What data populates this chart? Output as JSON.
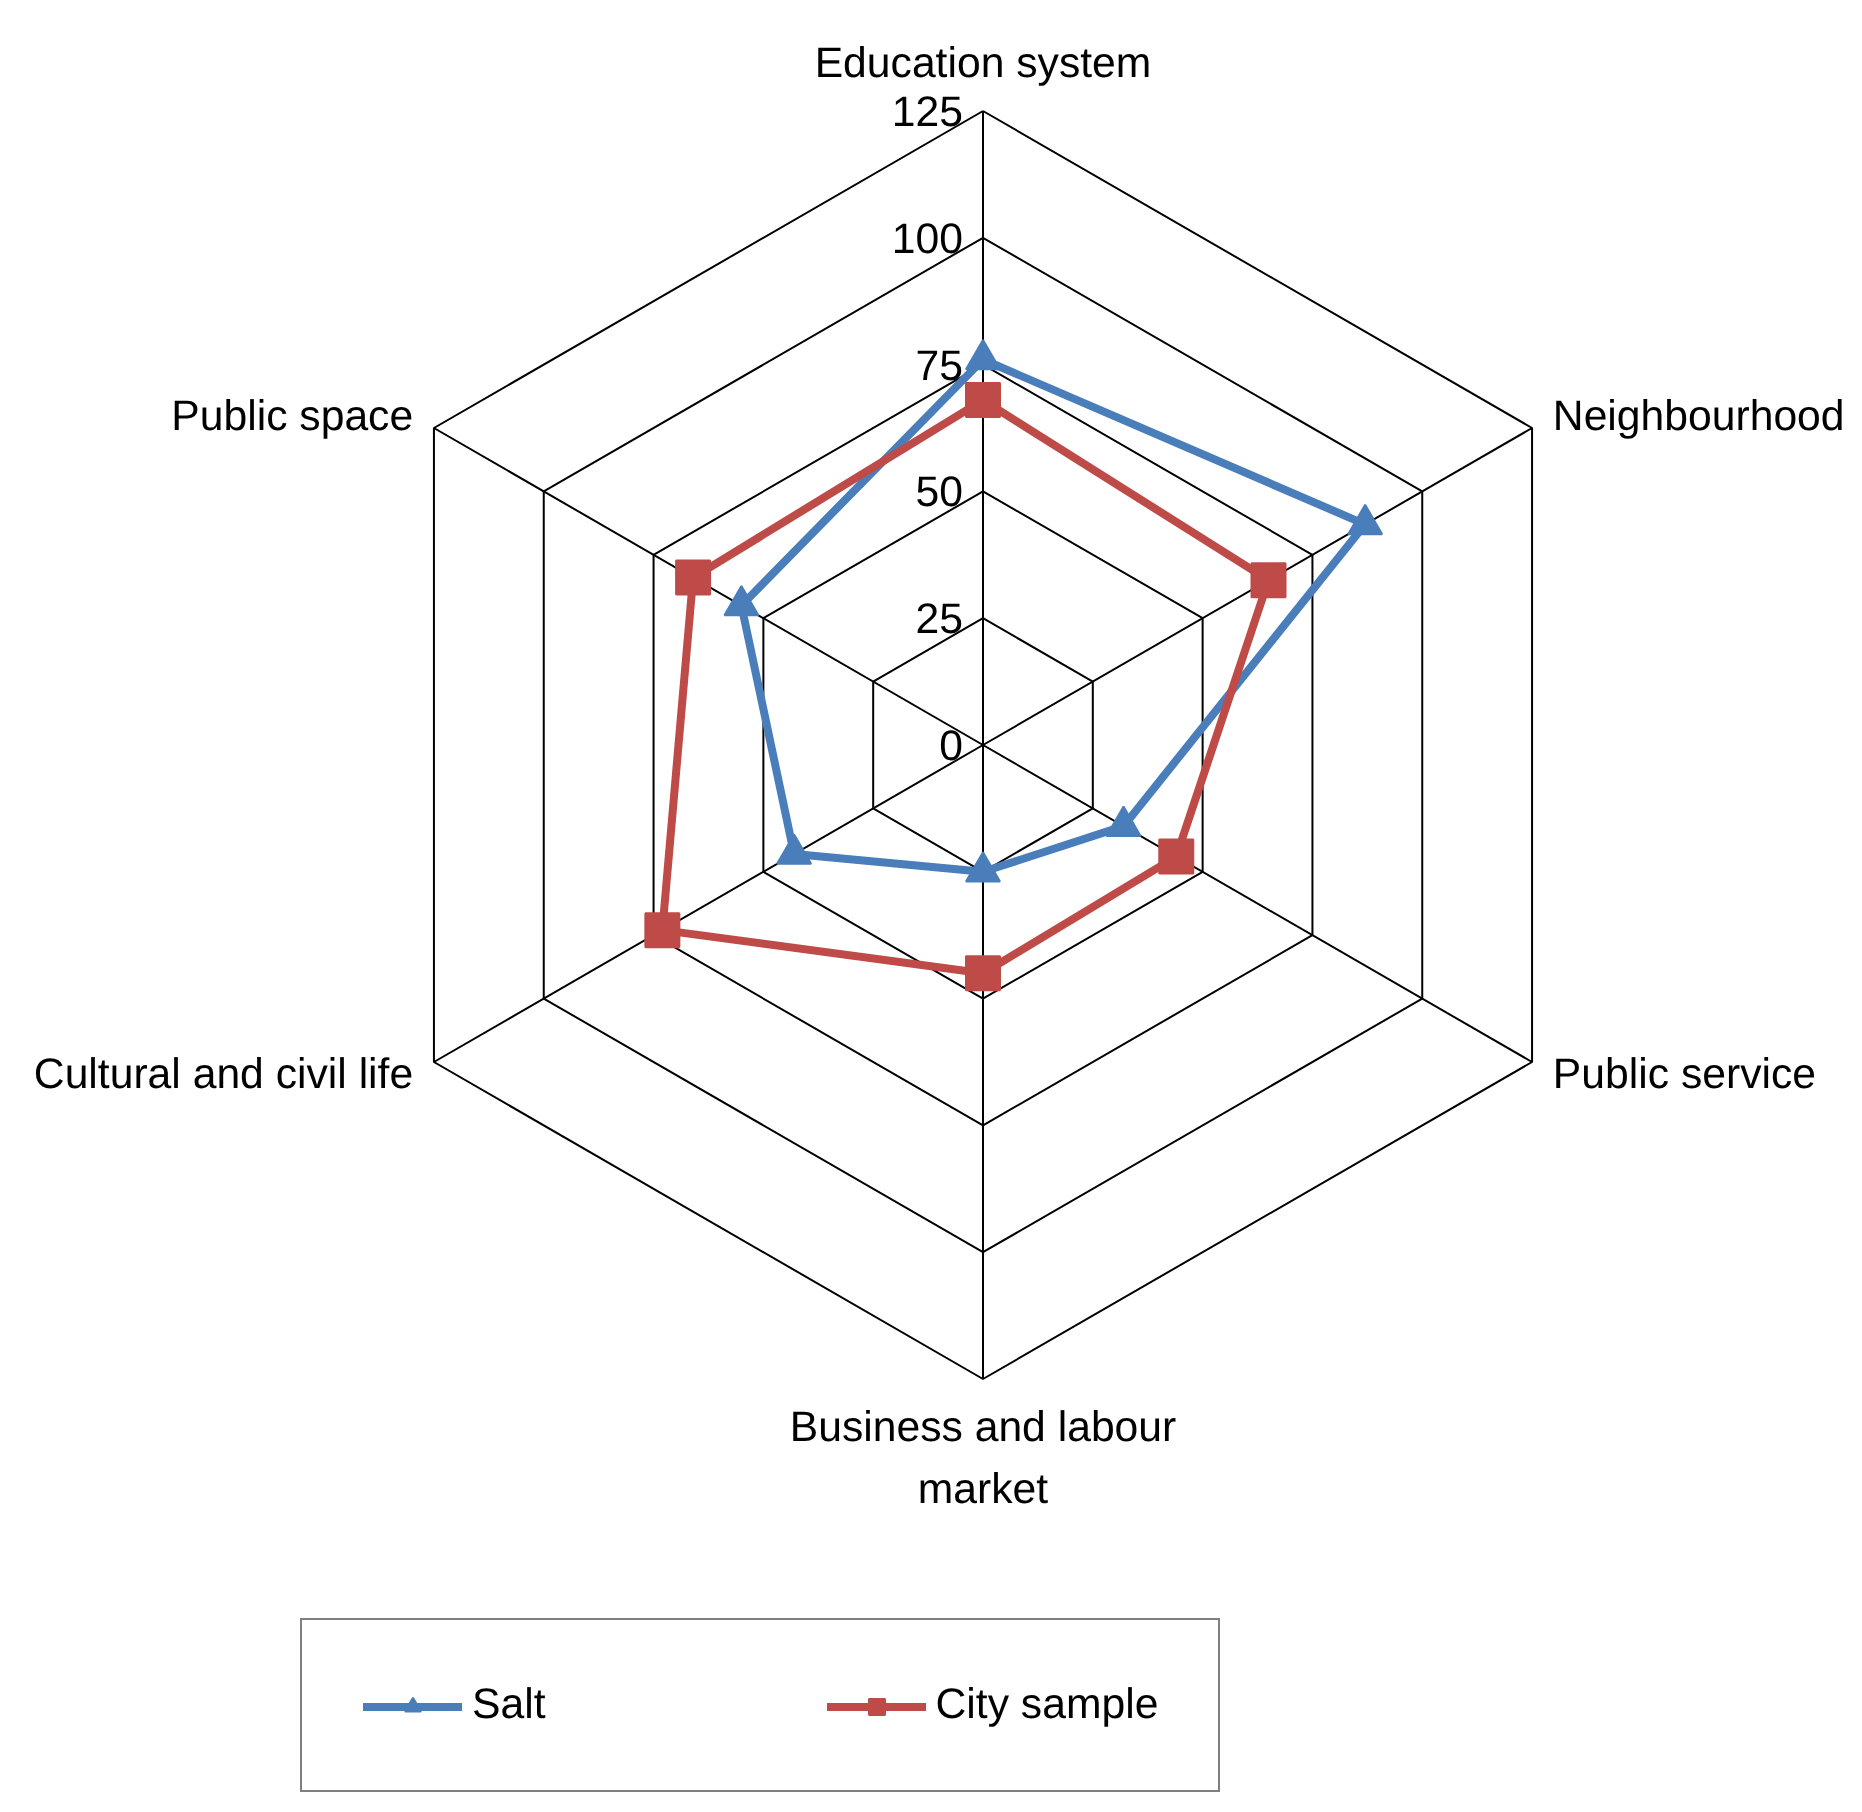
{
  "chart_data": {
    "type": "radar",
    "categories": [
      "Education system",
      "Neighbourhood",
      "Public service",
      "Business and labour market",
      "Cultural and civil life",
      "Public space"
    ],
    "series": [
      {
        "name": "Salt",
        "color": "#4a7ebb",
        "marker": "triangle",
        "values": [
          76,
          87,
          32,
          25,
          43,
          55
        ]
      },
      {
        "name": "City sample",
        "color": "#be4b48",
        "marker": "square",
        "values": [
          68,
          65,
          44,
          45,
          73,
          66
        ]
      }
    ],
    "ylim": [
      0,
      125
    ],
    "yticks": [
      0,
      25,
      50,
      75,
      100,
      125
    ],
    "grid": true,
    "legend": "bottom"
  }
}
